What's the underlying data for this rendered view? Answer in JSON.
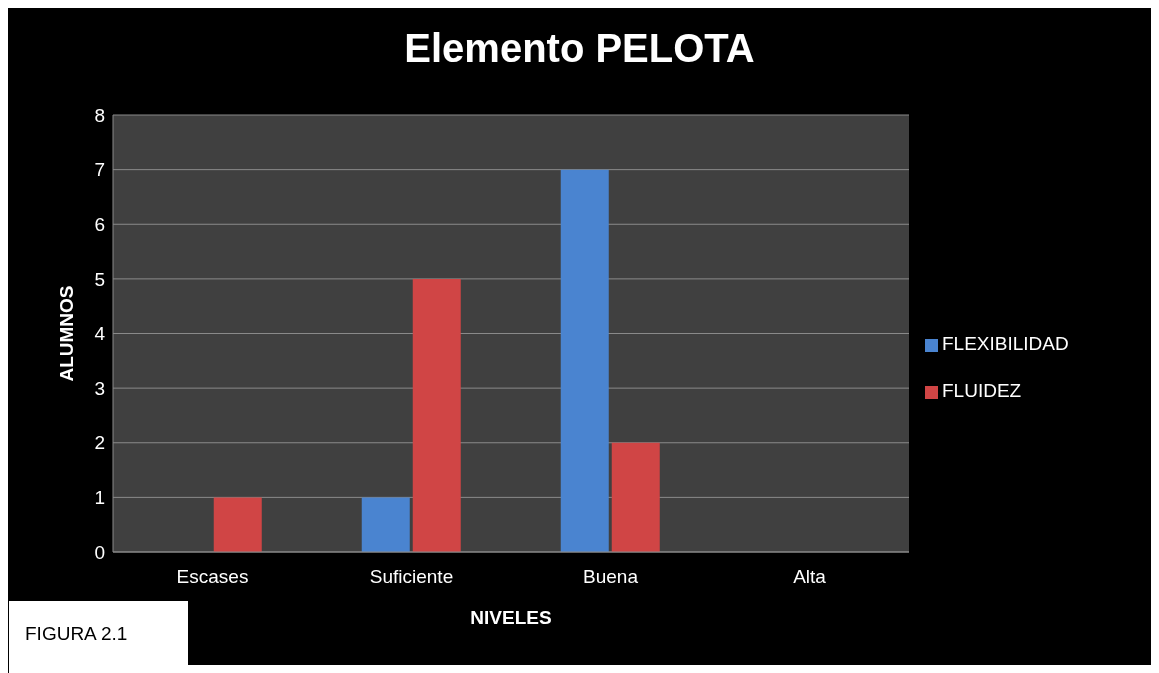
{
  "chart_data": {
    "type": "bar",
    "title": "Elemento PELOTA",
    "xlabel": "NIVELES",
    "ylabel": "ALUMNOS",
    "categories": [
      "Escases",
      "Suficiente",
      "Buena",
      "Alta"
    ],
    "series": [
      {
        "name": "FLEXIBILIDAD",
        "color": "#4a84d0",
        "values": [
          0,
          1,
          7,
          0
        ]
      },
      {
        "name": "FLUIDEZ",
        "color": "#d04545",
        "values": [
          1,
          5,
          2,
          0
        ]
      }
    ],
    "ylim": [
      0,
      8
    ],
    "yticks": [
      0,
      1,
      2,
      3,
      4,
      5,
      6,
      7,
      8
    ],
    "grid": "y",
    "legend": "right",
    "annotations": [
      "FIGURA 2.1"
    ]
  }
}
